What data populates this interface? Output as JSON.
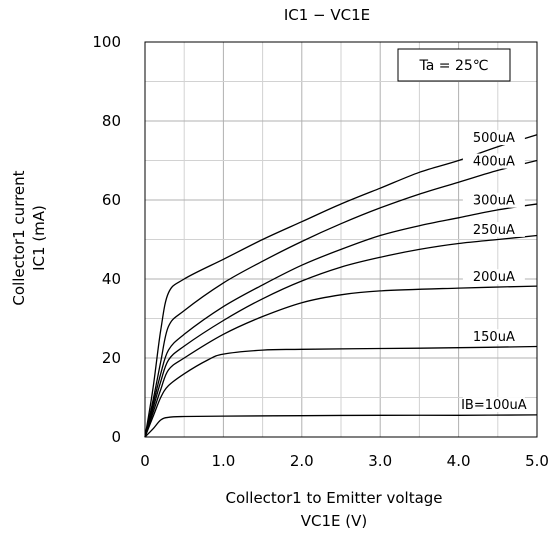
{
  "chart_data": {
    "type": "line",
    "title": "IC1 − VC1E",
    "xlabel_line1": "Collector1 to Emitter voltage",
    "xlabel_line2": "VC1E (V)",
    "ylabel_line1": "Collector1 current",
    "ylabel_line2": "IC1 (mA)",
    "xlim": [
      0,
      5
    ],
    "ylim": [
      0,
      100
    ],
    "x_ticks": [
      "0",
      "1.0",
      "2.0",
      "3.0",
      "4.0",
      "5.0"
    ],
    "x_tick_values": [
      0,
      1,
      2,
      3,
      4,
      5
    ],
    "y_ticks": [
      "0",
      "20",
      "40",
      "60",
      "80",
      "100"
    ],
    "y_tick_values": [
      0,
      20,
      40,
      60,
      80,
      100
    ],
    "grid": true,
    "condition": "Ta = 25℃",
    "series": [
      {
        "name": "IB=100uA",
        "x": [
          0,
          0.1,
          0.2,
          0.3,
          0.5,
          1.0,
          2.0,
          3.0,
          4.0,
          5.0
        ],
        "y": [
          0,
          2,
          4.3,
          5,
          5.2,
          5.3,
          5.4,
          5.5,
          5.5,
          5.6
        ]
      },
      {
        "name": "150uA",
        "x": [
          0,
          0.1,
          0.2,
          0.3,
          0.5,
          0.8,
          1.0,
          1.5,
          2.0,
          3.0,
          4.0,
          5.0
        ],
        "y": [
          0,
          5,
          10,
          13,
          16,
          19.5,
          21,
          22,
          22.2,
          22.4,
          22.6,
          22.9
        ]
      },
      {
        "name": "200uA",
        "x": [
          0,
          0.1,
          0.2,
          0.3,
          0.5,
          1.0,
          1.5,
          2.0,
          2.5,
          3.0,
          4.0,
          5.0
        ],
        "y": [
          0,
          6,
          12,
          17,
          20,
          26,
          30.5,
          34,
          36,
          37,
          37.7,
          38.2
        ]
      },
      {
        "name": "250uA",
        "x": [
          0,
          0.1,
          0.2,
          0.3,
          0.5,
          1.0,
          1.5,
          2.0,
          2.5,
          3.0,
          3.5,
          4.0,
          4.5,
          5.0
        ],
        "y": [
          0,
          7,
          14,
          19.5,
          23,
          29.5,
          35,
          39.5,
          43,
          45.5,
          47.5,
          49,
          50,
          51
        ]
      },
      {
        "name": "300uA",
        "x": [
          0,
          0.1,
          0.2,
          0.3,
          0.5,
          1.0,
          1.5,
          2.0,
          2.5,
          3.0,
          3.5,
          4.0,
          4.5,
          5.0
        ],
        "y": [
          0,
          8,
          16,
          22,
          26,
          33,
          38.5,
          43.5,
          47.5,
          51,
          53.5,
          55.5,
          57.5,
          59
        ]
      },
      {
        "name": "400uA",
        "x": [
          0,
          0.1,
          0.2,
          0.3,
          0.5,
          1.0,
          1.5,
          2.0,
          2.5,
          3.0,
          3.5,
          4.0,
          4.5,
          5.0
        ],
        "y": [
          0,
          9,
          19,
          28,
          32,
          39,
          44.5,
          49.5,
          54,
          58,
          61.5,
          64.5,
          67.5,
          70
        ]
      },
      {
        "name": "500uA",
        "x": [
          0,
          0.1,
          0.2,
          0.3,
          0.5,
          1.0,
          1.5,
          2.0,
          2.5,
          3.0,
          3.5,
          4.0,
          4.5,
          5.0
        ],
        "y": [
          0,
          12,
          27,
          36.5,
          40,
          45,
          50,
          54.5,
          59,
          63,
          67,
          70,
          73.5,
          76.5
        ]
      }
    ]
  }
}
